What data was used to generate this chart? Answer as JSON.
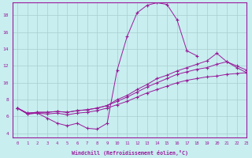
{
  "xlabel": "Windchill (Refroidissement éolien,°C)",
  "ylabel": "",
  "bg_color": "#c8eef0",
  "line_color": "#9b1a9b",
  "grid_color": "#a8cdd0",
  "xlim": [
    -0.5,
    23
  ],
  "ylim": [
    3.5,
    19.5
  ],
  "yticks": [
    4,
    6,
    8,
    10,
    12,
    14,
    16,
    18
  ],
  "xticks": [
    0,
    1,
    2,
    3,
    4,
    5,
    6,
    7,
    8,
    9,
    10,
    11,
    12,
    13,
    14,
    15,
    16,
    17,
    18,
    19,
    20,
    21,
    22,
    23
  ],
  "series": [
    [
      7.0,
      6.3,
      6.4,
      5.8,
      5.2,
      4.9,
      5.2,
      4.6,
      4.5,
      5.2,
      11.5,
      15.5,
      18.3,
      19.2,
      19.5,
      19.3,
      17.5,
      13.8,
      13.2,
      null,
      null,
      null,
      null,
      null
    ],
    [
      7.0,
      6.3,
      6.4,
      6.3,
      6.4,
      6.2,
      6.4,
      6.5,
      6.7,
      7.0,
      7.4,
      7.8,
      8.3,
      8.8,
      9.2,
      9.6,
      10.0,
      10.3,
      10.5,
      10.7,
      10.8,
      11.0,
      11.1,
      11.2
    ],
    [
      7.0,
      6.4,
      6.5,
      6.5,
      6.6,
      6.5,
      6.7,
      6.8,
      7.0,
      7.3,
      7.8,
      8.3,
      8.9,
      9.5,
      10.0,
      10.5,
      11.0,
      11.3,
      11.6,
      11.8,
      12.2,
      12.5,
      12.0,
      11.5
    ],
    [
      7.0,
      6.4,
      6.5,
      6.5,
      6.6,
      6.5,
      6.7,
      6.8,
      7.0,
      7.3,
      8.0,
      8.5,
      9.2,
      9.8,
      10.5,
      10.9,
      11.4,
      11.8,
      12.2,
      12.6,
      13.5,
      12.5,
      11.8,
      11.2
    ]
  ]
}
